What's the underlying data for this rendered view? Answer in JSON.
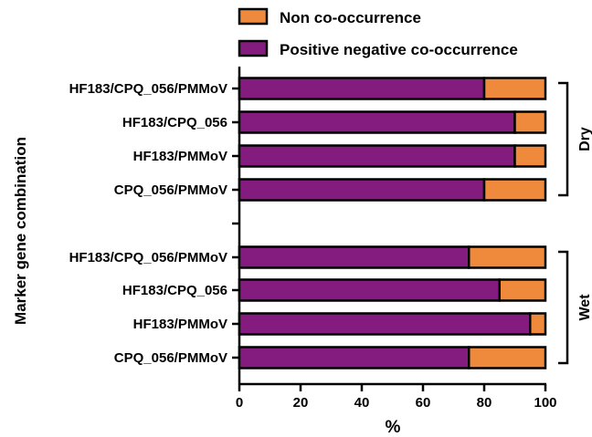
{
  "chart_data": {
    "type": "bar",
    "orientation": "horizontal",
    "stacked": true,
    "xlabel": "%",
    "ylabel": "Marker gene combination",
    "xlim": [
      0,
      100
    ],
    "xticks": [
      "0",
      "20",
      "40",
      "60",
      "80",
      "100"
    ],
    "grid": false,
    "legend_position": "top",
    "series": [
      {
        "name": "Positive negative co-occurrence",
        "color": "#841C80"
      },
      {
        "name": "Non co-occurrence",
        "color": "#EF8A3C"
      }
    ],
    "groups": [
      {
        "label": "Dry",
        "bars": [
          {
            "category": "HF183/CPQ_056/PMMoV",
            "values": [
              80,
              20
            ]
          },
          {
            "category": "HF183/CPQ_056",
            "values": [
              90,
              10
            ]
          },
          {
            "category": "HF183/PMMoV",
            "values": [
              90,
              10
            ]
          },
          {
            "category": "CPQ_056/PMMoV",
            "values": [
              80,
              20
            ]
          }
        ]
      },
      {
        "label": "Wet",
        "bars": [
          {
            "category": "HF183/CPQ_056/PMMoV",
            "values": [
              75,
              25
            ]
          },
          {
            "category": "HF183/CPQ_056",
            "values": [
              85,
              15
            ]
          },
          {
            "category": "HF183/PMMoV",
            "values": [
              95,
              5
            ]
          },
          {
            "category": "CPQ_056/PMMoV",
            "values": [
              75,
              25
            ]
          }
        ]
      }
    ]
  }
}
